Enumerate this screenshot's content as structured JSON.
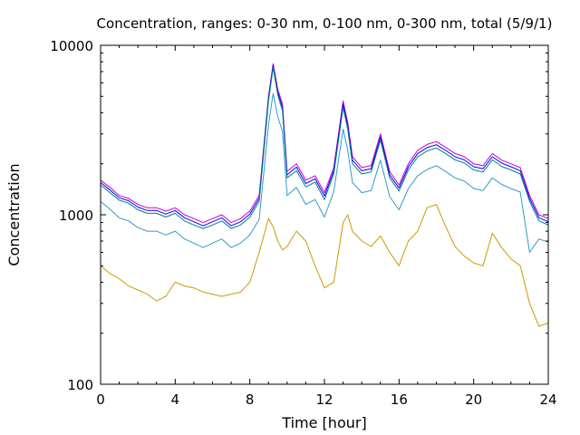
{
  "chart_data": {
    "type": "line",
    "title": "Concentration, ranges: 0-30 nm, 0-100 nm, 0-300 nm, total (5/9/1)",
    "xlabel": "Time [hour]",
    "ylabel": "Concentration",
    "xlim": [
      0,
      24
    ],
    "ylim": [
      100,
      10000
    ],
    "yscale": "log",
    "grid": false,
    "legend": "none",
    "x_ticks": [
      "0",
      "4",
      "8",
      "12",
      "16",
      "20",
      "24"
    ],
    "y_ticks": [
      "100",
      "1000",
      "10000"
    ],
    "x": [
      0,
      0.5,
      1,
      1.5,
      2,
      2.5,
      3,
      3.5,
      4,
      4.5,
      5,
      5.5,
      6,
      6.5,
      7,
      7.5,
      8,
      8.5,
      9,
      9.25,
      9.5,
      9.75,
      10,
      10.5,
      11,
      11.5,
      12,
      12.5,
      13,
      13.25,
      13.5,
      14,
      14.5,
      15,
      15.5,
      16,
      16.5,
      17,
      17.5,
      18,
      18.5,
      19,
      19.5,
      20,
      20.5,
      21,
      21.5,
      22,
      22.5,
      23,
      23.5,
      24
    ],
    "series": [
      {
        "color": "#cc00cc",
        "values": [
          1600,
          1450,
          1300,
          1250,
          1150,
          1100,
          1100,
          1050,
          1100,
          1000,
          950,
          900,
          950,
          1000,
          900,
          950,
          1050,
          1300,
          5000,
          7800,
          5500,
          4500,
          1800,
          2000,
          1600,
          1700,
          1350,
          1900,
          4700,
          3500,
          2200,
          1900,
          1950,
          3000,
          1800,
          1500,
          2000,
          2400,
          2600,
          2700,
          2500,
          2300,
          2200,
          2000,
          1950,
          2300,
          2100,
          2000,
          1900,
          1300,
          1000,
          950
        ]
      },
      {
        "color": "#0000ff",
        "values": [
          1550,
          1400,
          1260,
          1210,
          1110,
          1060,
          1060,
          1010,
          1060,
          960,
          910,
          860,
          910,
          960,
          860,
          910,
          1010,
          1250,
          4900,
          7600,
          5300,
          4300,
          1720,
          1910,
          1530,
          1630,
          1290,
          1820,
          4500,
          3350,
          2100,
          1820,
          1870,
          2880,
          1720,
          1440,
          1920,
          2300,
          2490,
          2590,
          2400,
          2200,
          2110,
          1920,
          1870,
          2200,
          2020,
          1920,
          1820,
          1250,
          960,
          910
        ]
      },
      {
        "color": "#008080",
        "values": [
          1500,
          1350,
          1220,
          1170,
          1070,
          1020,
          1020,
          970,
          1020,
          920,
          870,
          830,
          870,
          920,
          830,
          870,
          970,
          1200,
          4700,
          7400,
          5100,
          4100,
          1650,
          1820,
          1460,
          1560,
          1230,
          1740,
          4300,
          3200,
          2000,
          1740,
          1790,
          2760,
          1650,
          1380,
          1840,
          2200,
          2380,
          2480,
          2300,
          2110,
          2020,
          1840,
          1790,
          2110,
          1930,
          1840,
          1740,
          1200,
          920,
          870
        ]
      },
      {
        "color": "#3399cc",
        "values": [
          1200,
          1080,
          960,
          920,
          840,
          800,
          800,
          760,
          800,
          720,
          680,
          640,
          680,
          720,
          640,
          680,
          760,
          940,
          3400,
          5200,
          3800,
          3100,
          1300,
          1450,
          1150,
          1230,
          970,
          1370,
          3200,
          2400,
          1550,
          1350,
          1390,
          2100,
          1280,
          1070,
          1430,
          1700,
          1850,
          1950,
          1800,
          1650,
          1580,
          1430,
          1390,
          1650,
          1510,
          1430,
          1360,
          600,
          720,
          690
        ]
      },
      {
        "color": "#cc9900",
        "values": [
          500,
          450,
          420,
          380,
          360,
          340,
          310,
          330,
          400,
          380,
          370,
          350,
          340,
          330,
          340,
          350,
          400,
          600,
          950,
          850,
          700,
          620,
          650,
          800,
          700,
          500,
          370,
          400,
          900,
          1000,
          800,
          700,
          650,
          750,
          600,
          500,
          700,
          800,
          1100,
          1150,
          850,
          650,
          570,
          520,
          500,
          780,
          640,
          550,
          500,
          300,
          220,
          230
        ]
      }
    ]
  }
}
